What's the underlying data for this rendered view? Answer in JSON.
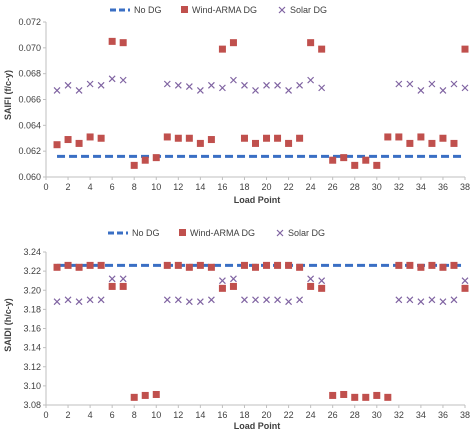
{
  "colors": {
    "no_dg": "#3a6fc4",
    "wind": "#c0504d",
    "solar": "#8064a2",
    "axis": "#bfbfbf",
    "text": "#404040"
  },
  "chart_data": [
    {
      "type": "scatter",
      "xlabel": "Load Point",
      "ylabel": "SAIFI (f/c-y)",
      "ylim": [
        0.06,
        0.072
      ],
      "yticks": [
        "0.060",
        "0.062",
        "0.064",
        "0.066",
        "0.068",
        "0.070",
        "0.072"
      ],
      "xlim": [
        0,
        38
      ],
      "xticks": [
        "0",
        "2",
        "4",
        "6",
        "8",
        "10",
        "12",
        "14",
        "16",
        "18",
        "20",
        "22",
        "24",
        "26",
        "28",
        "30",
        "32",
        "34",
        "36",
        "38"
      ],
      "legend_position": "top",
      "series": [
        {
          "name": "No DG",
          "style": "dashed-line",
          "x": [
            1,
            38
          ],
          "y": [
            0.0616,
            0.0616
          ]
        },
        {
          "name": "Wind-ARMA DG",
          "style": "square",
          "x": [
            1,
            2,
            3,
            4,
            5,
            6,
            7,
            8,
            9,
            10,
            11,
            12,
            13,
            14,
            15,
            16,
            17,
            18,
            19,
            20,
            21,
            22,
            23,
            24,
            25,
            26,
            27,
            28,
            29,
            30,
            31,
            32,
            33,
            34,
            35,
            36,
            37,
            38
          ],
          "y": [
            0.0625,
            0.0629,
            0.0626,
            0.0631,
            0.063,
            0.0705,
            0.0704,
            0.0609,
            0.0613,
            0.0615,
            0.0631,
            0.063,
            0.063,
            0.0626,
            0.0629,
            0.0699,
            0.0704,
            0.063,
            0.0626,
            0.063,
            0.063,
            0.0626,
            0.063,
            0.0704,
            0.0699,
            0.0613,
            0.0615,
            0.0609,
            0.0613,
            0.0609,
            0.0631,
            0.0631,
            0.0626,
            0.0631,
            0.0626,
            0.063,
            0.0626,
            0.0699
          ]
        },
        {
          "name": "Solar DG",
          "style": "x-mark",
          "x": [
            1,
            2,
            3,
            4,
            5,
            6,
            7,
            11,
            12,
            13,
            14,
            15,
            16,
            17,
            18,
            19,
            20,
            21,
            22,
            23,
            24,
            25,
            32,
            33,
            34,
            35,
            36,
            37,
            38
          ],
          "y": [
            0.0667,
            0.0671,
            0.0667,
            0.0672,
            0.0671,
            0.0676,
            0.0675,
            0.0672,
            0.0671,
            0.067,
            0.0667,
            0.0671,
            0.0669,
            0.0675,
            0.0671,
            0.0667,
            0.0671,
            0.0671,
            0.0667,
            0.0671,
            0.0675,
            0.0669,
            0.0672,
            0.0672,
            0.0667,
            0.0672,
            0.0667,
            0.0672,
            0.0669
          ]
        }
      ]
    },
    {
      "type": "scatter",
      "xlabel": "Load Point",
      "ylabel": "SAIDI (h/c-y)",
      "ylim": [
        3.08,
        3.24
      ],
      "yticks": [
        "3.08",
        "3.10",
        "3.12",
        "3.14",
        "3.16",
        "3.18",
        "3.20",
        "3.22",
        "3.24"
      ],
      "xlim": [
        0,
        38
      ],
      "xticks": [
        "0",
        "2",
        "4",
        "6",
        "8",
        "10",
        "12",
        "14",
        "16",
        "18",
        "20",
        "22",
        "24",
        "26",
        "28",
        "30",
        "32",
        "34",
        "36",
        "38"
      ],
      "legend_position": "top",
      "series": [
        {
          "name": "No DG",
          "style": "dashed-line",
          "x": [
            1,
            38
          ],
          "y": [
            3.226,
            3.226
          ]
        },
        {
          "name": "Wind-ARMA DG",
          "style": "square",
          "x": [
            1,
            2,
            3,
            4,
            5,
            6,
            7,
            8,
            9,
            10,
            11,
            12,
            13,
            14,
            15,
            16,
            17,
            18,
            19,
            20,
            21,
            22,
            23,
            24,
            25,
            26,
            27,
            28,
            29,
            30,
            31,
            32,
            33,
            34,
            35,
            36,
            37,
            38
          ],
          "y": [
            3.224,
            3.226,
            3.224,
            3.226,
            3.226,
            3.204,
            3.204,
            3.088,
            3.09,
            3.091,
            3.226,
            3.226,
            3.224,
            3.226,
            3.224,
            3.202,
            3.204,
            3.226,
            3.224,
            3.226,
            3.226,
            3.226,
            3.224,
            3.204,
            3.202,
            3.09,
            3.091,
            3.088,
            3.088,
            3.09,
            3.088,
            3.226,
            3.226,
            3.224,
            3.226,
            3.224,
            3.226,
            3.202
          ]
        },
        {
          "name": "Solar DG",
          "style": "x-mark",
          "x": [
            1,
            2,
            3,
            4,
            5,
            6,
            7,
            11,
            12,
            13,
            14,
            15,
            16,
            17,
            18,
            19,
            20,
            21,
            22,
            23,
            24,
            25,
            32,
            33,
            34,
            35,
            36,
            37,
            38
          ],
          "y": [
            3.188,
            3.19,
            3.188,
            3.19,
            3.19,
            3.212,
            3.212,
            3.19,
            3.19,
            3.188,
            3.188,
            3.19,
            3.21,
            3.212,
            3.19,
            3.19,
            3.19,
            3.19,
            3.188,
            3.19,
            3.212,
            3.21,
            3.19,
            3.19,
            3.188,
            3.19,
            3.188,
            3.19,
            3.21
          ]
        }
      ]
    }
  ]
}
